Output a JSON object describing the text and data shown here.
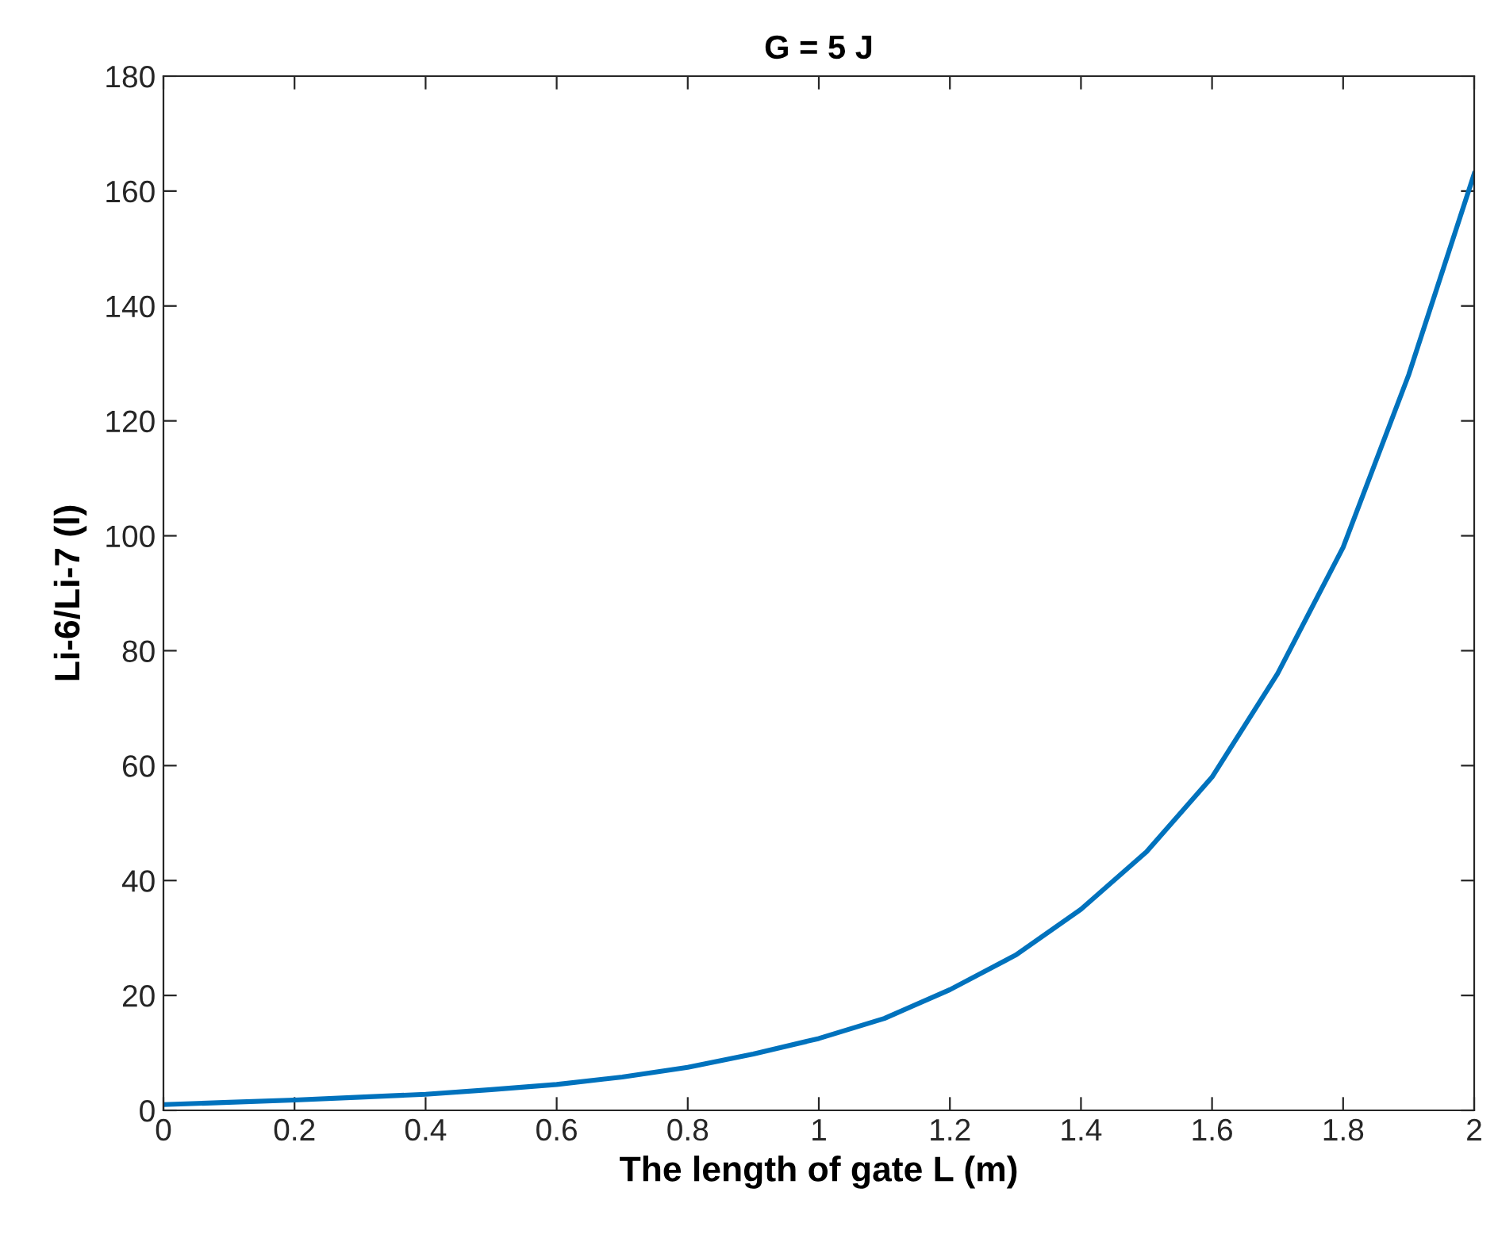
{
  "chart_data": {
    "type": "line",
    "title": "G = 5 J",
    "xlabel": "The length of gate L (m)",
    "ylabel": "Li-6/Li-7 (l)",
    "x": [
      0,
      0.1,
      0.2,
      0.3,
      0.4,
      0.5,
      0.6,
      0.7,
      0.8,
      0.9,
      1.0,
      1.1,
      1.2,
      1.3,
      1.4,
      1.5,
      1.6,
      1.7,
      1.8,
      1.9,
      2.0
    ],
    "series": [
      {
        "color": "#0072bd",
        "values": [
          1,
          1.4,
          1.8,
          2.3,
          2.8,
          3.6,
          4.5,
          5.8,
          7.5,
          9.8,
          12.5,
          16,
          21,
          27,
          35,
          45,
          58,
          76,
          98,
          128,
          163
        ]
      }
    ],
    "xlim": [
      0,
      2
    ],
    "xticks": [
      0,
      0.2,
      0.4,
      0.6,
      0.8,
      1,
      1.2,
      1.4,
      1.6,
      1.8,
      2
    ],
    "ylim": [
      0,
      180
    ],
    "yticks": [
      0,
      20,
      40,
      60,
      80,
      100,
      120,
      140,
      160,
      180
    ],
    "grid": false,
    "legend": false,
    "marker": "none",
    "line_style": "solid"
  }
}
